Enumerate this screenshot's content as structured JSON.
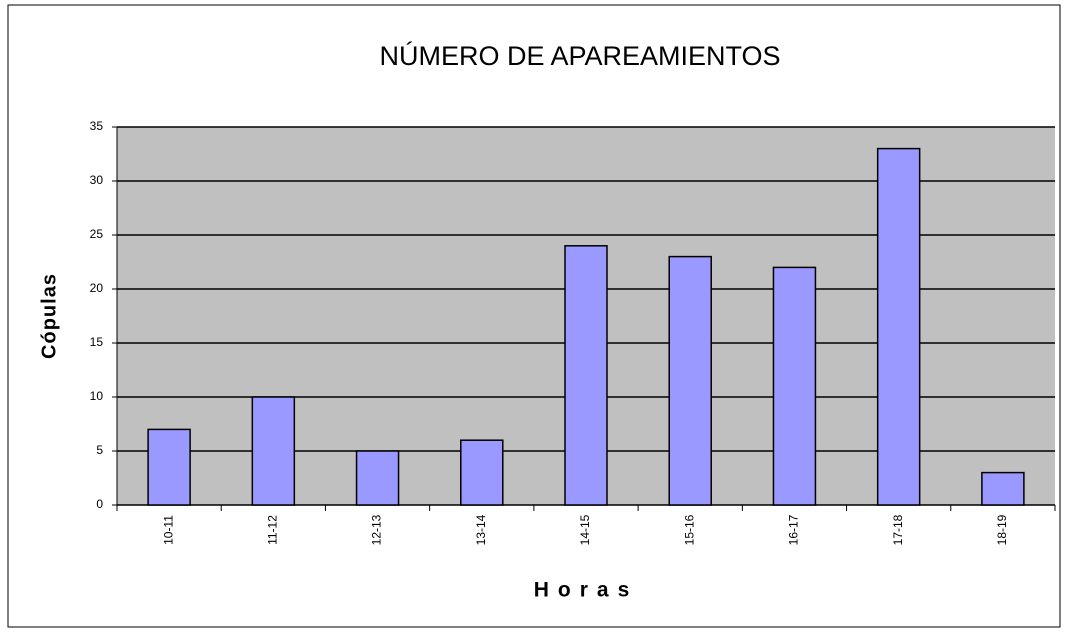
{
  "chart_data": {
    "type": "bar",
    "title": "NÚMERO DE APAREAMIENTOS",
    "x_label": "Horas",
    "y_label": "Cópulas",
    "categories": [
      "10-11",
      "11-12",
      "12-13",
      "13-14",
      "14-15",
      "15-16",
      "16-17",
      "17-18",
      "18-19"
    ],
    "values": [
      7,
      10,
      5,
      6,
      24,
      23,
      22,
      33,
      3
    ],
    "color": "#9999ff",
    "ylim": [
      0,
      35
    ],
    "yticks": [
      0,
      5,
      10,
      15,
      20,
      25,
      30,
      35
    ],
    "grid": true
  }
}
